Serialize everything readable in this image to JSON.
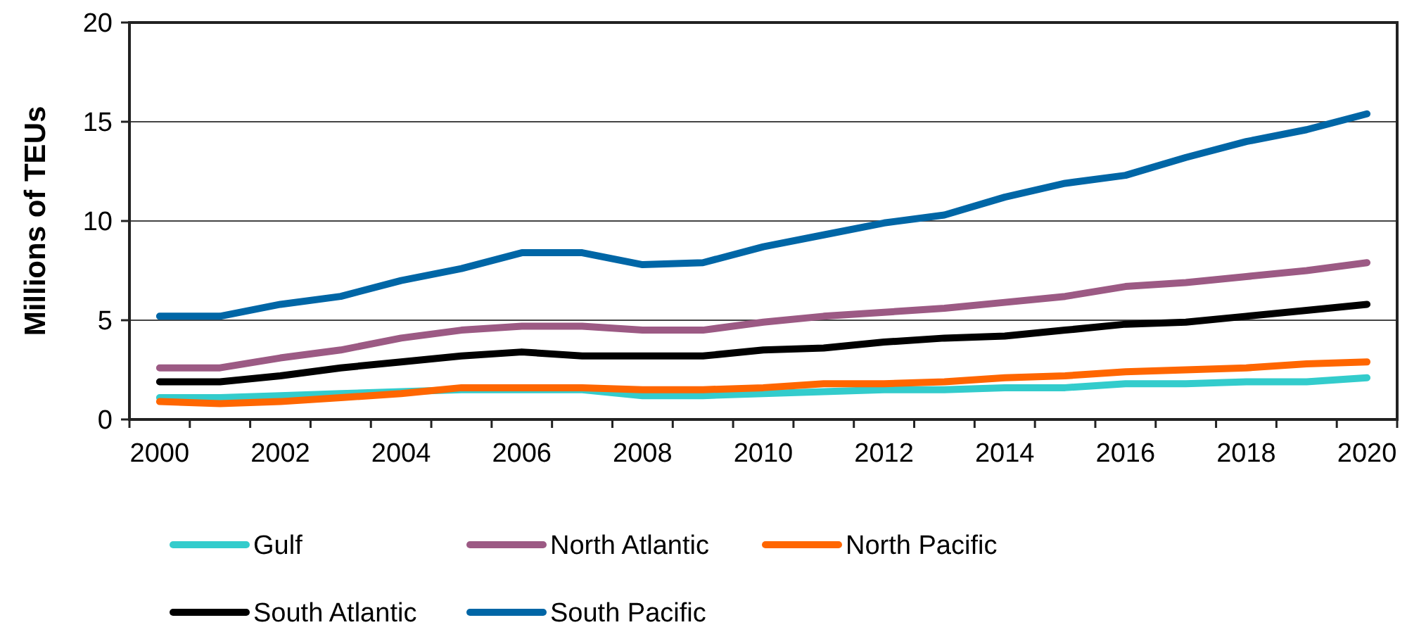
{
  "chart_data": {
    "type": "line",
    "ylabel": "Millions of TEUs",
    "categories": [
      "2000",
      null,
      "2002",
      null,
      "2004",
      null,
      "2006",
      null,
      "2008",
      null,
      "2010",
      null,
      "2012",
      null,
      "2014",
      null,
      "2016",
      null,
      "2018",
      null,
      "2020"
    ],
    "series": [
      {
        "name": "Gulf",
        "color": "#33cccc",
        "values": [
          1.1,
          1.1,
          1.2,
          1.3,
          1.4,
          1.5,
          1.5,
          1.5,
          1.2,
          1.2,
          1.3,
          1.4,
          1.5,
          1.5,
          1.6,
          1.6,
          1.8,
          1.8,
          1.9,
          1.9,
          2.1
        ]
      },
      {
        "name": "North Atlantic",
        "color": "#9c5a84",
        "values": [
          2.6,
          2.6,
          3.1,
          3.5,
          4.1,
          4.5,
          4.7,
          4.7,
          4.5,
          4.5,
          4.9,
          5.2,
          5.4,
          5.6,
          5.9,
          6.2,
          6.7,
          6.9,
          7.2,
          7.5,
          7.9
        ]
      },
      {
        "name": "North Pacific",
        "color": "#ff6600",
        "values": [
          0.9,
          0.8,
          0.9,
          1.1,
          1.3,
          1.6,
          1.6,
          1.6,
          1.5,
          1.5,
          1.6,
          1.8,
          1.8,
          1.9,
          2.1,
          2.2,
          2.4,
          2.5,
          2.6,
          2.8,
          2.9
        ]
      },
      {
        "name": "South Atlantic",
        "color": "#000000",
        "values": [
          1.9,
          1.9,
          2.2,
          2.6,
          2.9,
          3.2,
          3.4,
          3.2,
          3.2,
          3.2,
          3.5,
          3.6,
          3.9,
          4.1,
          4.2,
          4.5,
          4.8,
          4.9,
          5.2,
          5.5,
          5.8
        ]
      },
      {
        "name": "South Pacific",
        "color": "#0066a6",
        "values": [
          5.2,
          5.2,
          5.8,
          6.2,
          7.0,
          7.6,
          8.4,
          8.4,
          7.8,
          7.9,
          8.7,
          9.3,
          9.9,
          10.3,
          11.2,
          11.9,
          12.3,
          13.2,
          14.0,
          14.6,
          15.4
        ]
      }
    ],
    "ylim": [
      0,
      20
    ],
    "yticks": [
      0,
      5,
      10,
      15,
      20
    ],
    "grid": "y",
    "legend": "bottom"
  }
}
